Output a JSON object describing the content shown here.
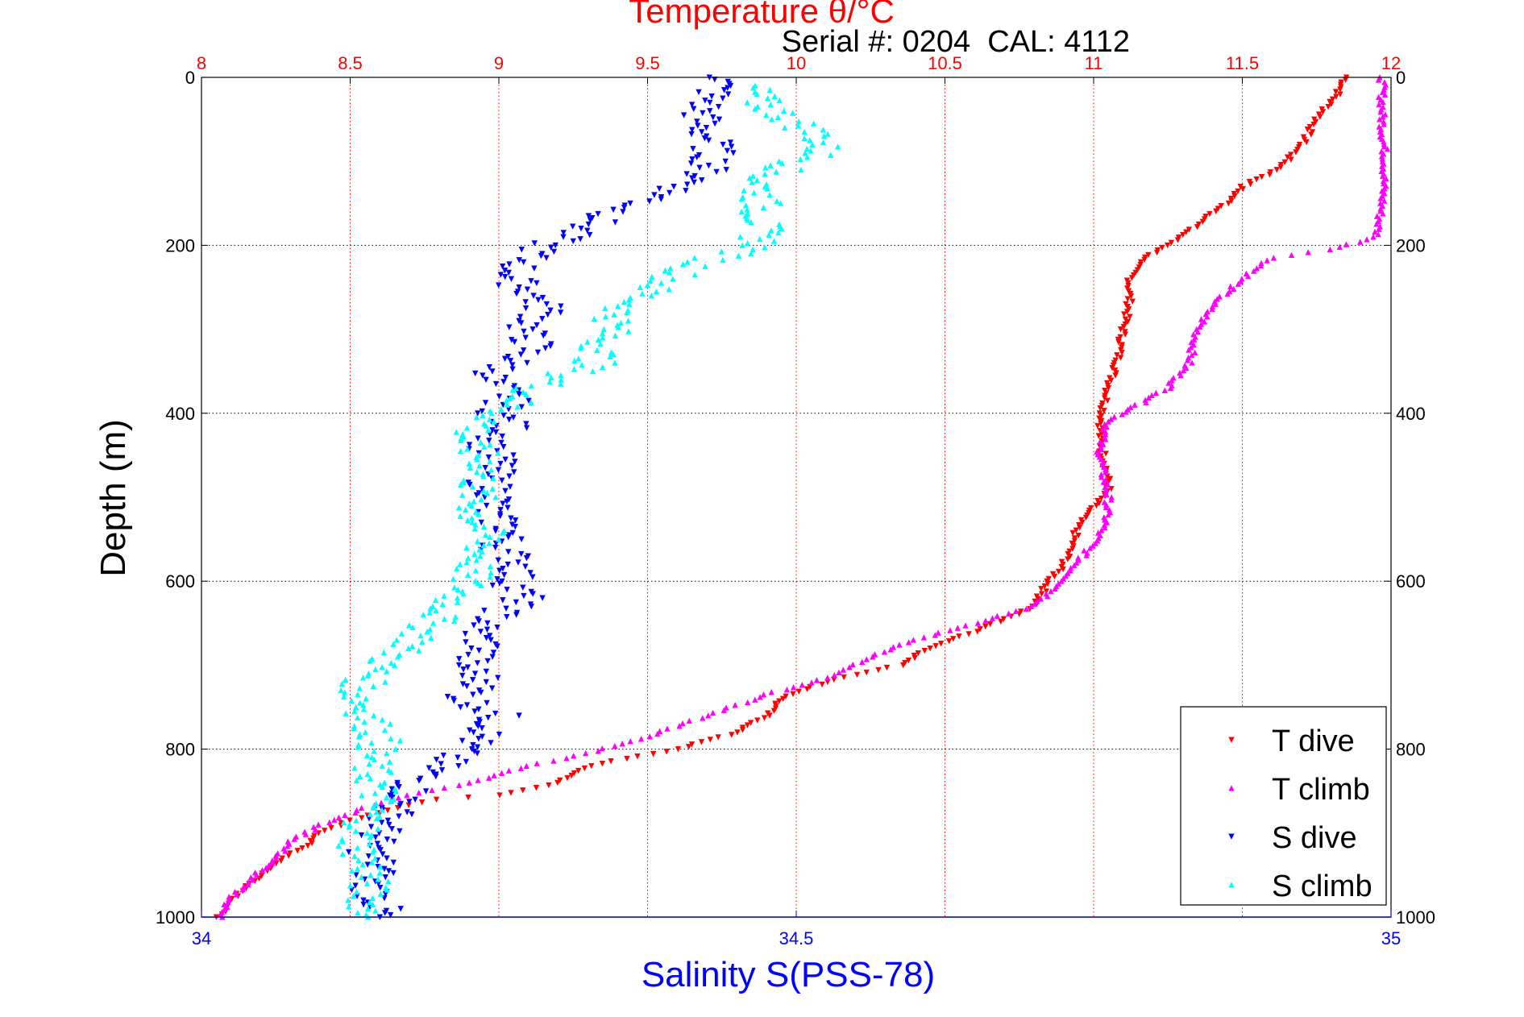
{
  "chart_data": {
    "type": "scatter",
    "title": "Temperature θ/°C",
    "annotation": "Serial #: 0204  CAL: 4112",
    "ylabel": "Depth (m)",
    "xlabel_bottom": "Salinity S(PSS-78)",
    "xlabel_top": "Temperature θ/°C",
    "grid": true,
    "legend_placement": "bottom-right",
    "y_axis": {
      "range": [
        0,
        1000
      ],
      "reversed": true,
      "ticks": [
        "0",
        "200",
        "400",
        "600",
        "800",
        "1000"
      ]
    },
    "x_bottom_axis": {
      "quantity": "salinity",
      "range": [
        34,
        35
      ],
      "ticks": [
        "34",
        "34.5",
        "35"
      ],
      "color": "#0000ff"
    },
    "x_top_axis": {
      "quantity": "temperature",
      "range": [
        8,
        12
      ],
      "ticks": [
        "8",
        "8.5",
        "9",
        "9.5",
        "10",
        "10.5",
        "11",
        "11.5",
        "12"
      ],
      "color": "#ff0000"
    },
    "colors": {
      "t_dive": "#ff0000",
      "t_climb": "#ff00ff",
      "s_dive": "#0000ff",
      "s_climb": "#00ffff",
      "grid_top": "#ff0000",
      "grid_y": "#000000"
    },
    "series": [
      {
        "name": "T dive",
        "axis": "temperature",
        "color": "#ff0000",
        "points": [
          [
            11.85,
            0
          ],
          [
            11.82,
            20
          ],
          [
            11.75,
            50
          ],
          [
            11.7,
            80
          ],
          [
            11.62,
            110
          ],
          [
            11.5,
            130
          ],
          [
            11.45,
            150
          ],
          [
            11.35,
            175
          ],
          [
            11.25,
            200
          ],
          [
            11.15,
            220
          ],
          [
            11.12,
            245
          ],
          [
            11.12,
            270
          ],
          [
            11.1,
            300
          ],
          [
            11.08,
            340
          ],
          [
            11.05,
            370
          ],
          [
            11.03,
            400
          ],
          [
            11.02,
            430
          ],
          [
            11.04,
            460
          ],
          [
            11.05,
            490
          ],
          [
            11.0,
            510
          ],
          [
            10.95,
            530
          ],
          [
            10.93,
            555
          ],
          [
            10.9,
            580
          ],
          [
            10.85,
            600
          ],
          [
            10.8,
            630
          ],
          [
            10.6,
            660
          ],
          [
            10.45,
            680
          ],
          [
            10.35,
            700
          ],
          [
            10.1,
            720
          ],
          [
            9.95,
            740
          ],
          [
            9.9,
            760
          ],
          [
            9.8,
            780
          ],
          [
            9.6,
            800
          ],
          [
            9.3,
            820
          ],
          [
            9.2,
            840
          ],
          [
            9.0,
            855
          ],
          [
            8.8,
            860
          ],
          [
            8.65,
            870
          ],
          [
            8.5,
            885
          ],
          [
            8.4,
            900
          ],
          [
            8.35,
            915
          ],
          [
            8.28,
            930
          ],
          [
            8.22,
            945
          ],
          [
            8.17,
            960
          ],
          [
            8.12,
            975
          ],
          [
            8.08,
            990
          ],
          [
            8.05,
            1000
          ]
        ]
      },
      {
        "name": "T climb",
        "axis": "temperature",
        "color": "#ff00ff",
        "points": [
          [
            11.97,
            0
          ],
          [
            11.97,
            50
          ],
          [
            11.98,
            100
          ],
          [
            11.97,
            150
          ],
          [
            11.95,
            190
          ],
          [
            11.8,
            205
          ],
          [
            11.6,
            215
          ],
          [
            11.5,
            240
          ],
          [
            11.4,
            270
          ],
          [
            11.35,
            300
          ],
          [
            11.32,
            340
          ],
          [
            11.25,
            370
          ],
          [
            11.15,
            390
          ],
          [
            11.05,
            410
          ],
          [
            11.02,
            440
          ],
          [
            11.03,
            470
          ],
          [
            11.05,
            500
          ],
          [
            11.04,
            530
          ],
          [
            11.0,
            555
          ],
          [
            10.95,
            575
          ],
          [
            10.9,
            600
          ],
          [
            10.8,
            630
          ],
          [
            10.6,
            650
          ],
          [
            10.4,
            670
          ],
          [
            10.25,
            690
          ],
          [
            10.1,
            715
          ],
          [
            9.9,
            735
          ],
          [
            9.7,
            760
          ],
          [
            9.5,
            785
          ],
          [
            9.3,
            805
          ],
          [
            9.1,
            820
          ],
          [
            8.9,
            840
          ],
          [
            8.7,
            855
          ],
          [
            8.55,
            870
          ],
          [
            8.4,
            890
          ],
          [
            8.3,
            910
          ],
          [
            8.25,
            930
          ],
          [
            8.18,
            950
          ],
          [
            8.12,
            970
          ],
          [
            8.08,
            985
          ],
          [
            8.07,
            1000
          ]
        ]
      },
      {
        "name": "S dive",
        "axis": "salinity",
        "color": "#0000ff",
        "points": [
          [
            34.44,
            0
          ],
          [
            34.43,
            20
          ],
          [
            34.42,
            40
          ],
          [
            34.42,
            60
          ],
          [
            34.43,
            80
          ],
          [
            34.43,
            100
          ],
          [
            34.42,
            120
          ],
          [
            34.39,
            140
          ],
          [
            34.35,
            160
          ],
          [
            34.32,
            180
          ],
          [
            34.29,
            200
          ],
          [
            34.27,
            220
          ],
          [
            34.26,
            240
          ],
          [
            34.28,
            260
          ],
          [
            34.29,
            280
          ],
          [
            34.27,
            300
          ],
          [
            34.28,
            320
          ],
          [
            34.26,
            340
          ],
          [
            34.24,
            360
          ],
          [
            34.26,
            380
          ],
          [
            34.25,
            400
          ],
          [
            34.26,
            420
          ],
          [
            34.24,
            440
          ],
          [
            34.25,
            460
          ],
          [
            34.24,
            480
          ],
          [
            34.25,
            500
          ],
          [
            34.24,
            520
          ],
          [
            34.26,
            540
          ],
          [
            34.25,
            560
          ],
          [
            34.27,
            580
          ],
          [
            34.26,
            600
          ],
          [
            34.27,
            620
          ],
          [
            34.25,
            640
          ],
          [
            34.23,
            660
          ],
          [
            34.24,
            680
          ],
          [
            34.22,
            700
          ],
          [
            34.24,
            720
          ],
          [
            34.22,
            740
          ],
          [
            34.25,
            760
          ],
          [
            34.24,
            780
          ],
          [
            34.22,
            800
          ],
          [
            34.2,
            820
          ],
          [
            34.18,
            840
          ],
          [
            34.17,
            860
          ],
          [
            34.16,
            880
          ],
          [
            34.15,
            900
          ],
          [
            34.14,
            920
          ],
          [
            34.15,
            940
          ],
          [
            34.14,
            960
          ],
          [
            34.15,
            980
          ],
          [
            34.15,
            1000
          ]
        ]
      },
      {
        "name": "S climb",
        "axis": "salinity",
        "color": "#00ffff",
        "points": [
          [
            34.46,
            10
          ],
          [
            34.47,
            30
          ],
          [
            34.52,
            70
          ],
          [
            34.52,
            90
          ],
          [
            34.47,
            120
          ],
          [
            34.47,
            150
          ],
          [
            34.47,
            180
          ],
          [
            34.47,
            200
          ],
          [
            34.42,
            220
          ],
          [
            34.38,
            250
          ],
          [
            34.35,
            280
          ],
          [
            34.34,
            310
          ],
          [
            34.33,
            340
          ],
          [
            34.28,
            370
          ],
          [
            34.25,
            400
          ],
          [
            34.22,
            430
          ],
          [
            34.24,
            460
          ],
          [
            34.23,
            490
          ],
          [
            34.23,
            520
          ],
          [
            34.24,
            550
          ],
          [
            34.23,
            580
          ],
          [
            34.22,
            610
          ],
          [
            34.2,
            640
          ],
          [
            34.18,
            670
          ],
          [
            34.15,
            700
          ],
          [
            34.13,
            730
          ],
          [
            34.14,
            760
          ],
          [
            34.15,
            790
          ],
          [
            34.14,
            820
          ],
          [
            34.15,
            850
          ],
          [
            34.14,
            880
          ],
          [
            34.13,
            910
          ],
          [
            34.14,
            940
          ],
          [
            34.14,
            970
          ],
          [
            34.14,
            1000
          ]
        ]
      }
    ]
  }
}
